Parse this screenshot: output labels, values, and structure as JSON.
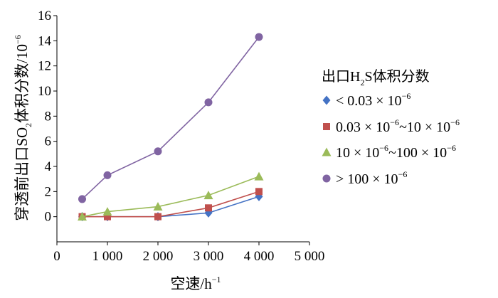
{
  "chart_data": {
    "type": "line",
    "xlabel": "空速/h",
    "xlabel_sup": "−1",
    "ylabel": "穿透前出口SO",
    "ylabel_sub": "2",
    "ylabel_rest": "体积分数/10",
    "ylabel_sup": "−6",
    "xlim": [
      0,
      5000
    ],
    "ylim": [
      -2,
      16
    ],
    "x_ticks": [
      0,
      1000,
      2000,
      3000,
      4000,
      5000
    ],
    "x_tick_labels": [
      "0",
      "1 000",
      "2 000",
      "3 000",
      "4 000",
      "5 000"
    ],
    "y_ticks": [
      0,
      2,
      4,
      6,
      8,
      10,
      12,
      14,
      16
    ],
    "y_tick_labels": [
      "0",
      "2",
      "4",
      "6",
      "8",
      "10",
      "12",
      "14",
      "16"
    ],
    "grid": false,
    "legend_placement": "right",
    "legend_title": "出口H",
    "legend_title_sub": "2",
    "legend_title_rest": "S体积分数",
    "x": [
      500,
      1000,
      2000,
      3000,
      4000
    ],
    "series": [
      {
        "name": "< 0.03 × 10⁻⁶",
        "label_parts": [
          "< 0.03 × 10",
          "−6",
          ""
        ],
        "marker": "diamond",
        "color": "#4472c4",
        "values": [
          0,
          0,
          0,
          0.3,
          1.6
        ]
      },
      {
        "name": "0.03 × 10⁻⁶~10 × 10⁻⁶",
        "label_parts": [
          "0.03 × 10",
          "−6",
          "~10 × 10",
          "−6"
        ],
        "marker": "square",
        "color": "#c0504d",
        "values": [
          0,
          0,
          0,
          0.7,
          2.0
        ]
      },
      {
        "name": "10 × 10⁻⁶~100 × 10⁻⁶",
        "label_parts": [
          "10 × 10",
          "−6",
          "~100 × 10",
          "−6"
        ],
        "marker": "triangle",
        "color": "#9bbb59",
        "values": [
          0,
          0.4,
          0.8,
          1.7,
          3.2
        ]
      },
      {
        "name": "> 100 × 10⁻⁶",
        "label_parts": [
          "> 100 × 10",
          "−6",
          ""
        ],
        "marker": "circle",
        "color": "#8064a2",
        "values": [
          1.4,
          3.3,
          5.2,
          9.1,
          14.3
        ]
      }
    ]
  }
}
